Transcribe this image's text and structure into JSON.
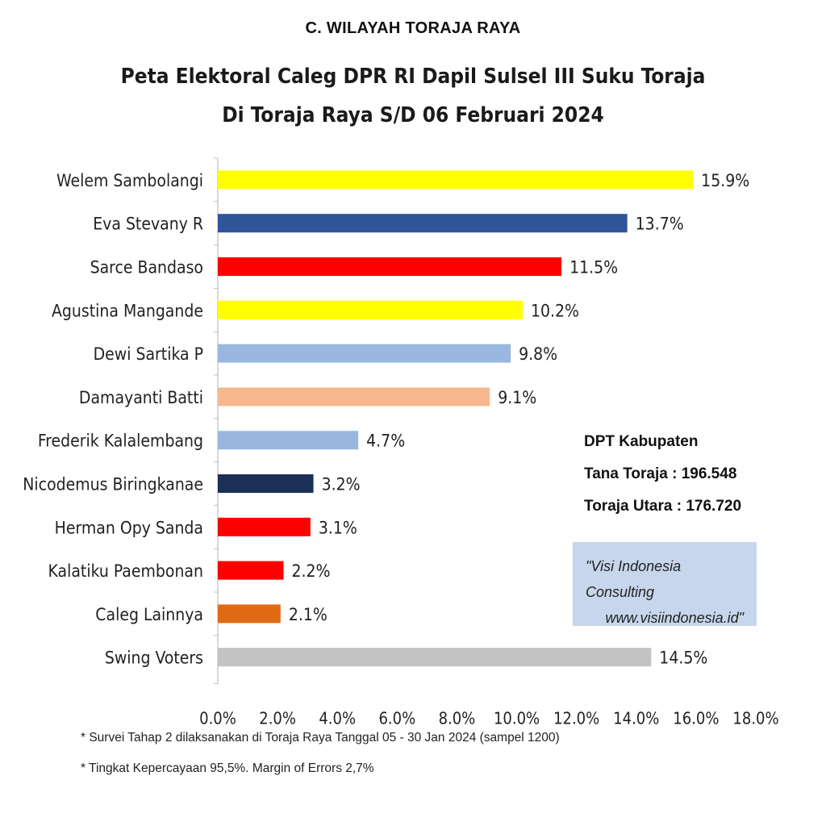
{
  "section_title": "C. WILAYAH TORAJA RAYA",
  "chart_data": {
    "type": "bar",
    "orientation": "horizontal",
    "title": "Peta Elektoral Caleg DPR RI Dapil Sulsel III Suku Toraja",
    "subtitle": "Di Toraja Raya S/D 06 Februari 2024",
    "categories": [
      "Welem Sambolangi",
      "Eva Stevany R",
      "Sarce Bandaso",
      "Agustina Mangande",
      "Dewi Sartika P",
      "Damayanti Batti",
      "Frederik Kalalembang",
      "Nicodemus Biringkanae",
      "Herman Opy Sanda",
      "Kalatiku Paembonan",
      "Caleg Lainnya",
      "Swing Voters"
    ],
    "values": [
      15.9,
      13.7,
      11.5,
      10.2,
      9.8,
      9.1,
      4.7,
      3.2,
      3.1,
      2.2,
      2.1,
      14.5
    ],
    "value_labels": [
      "15.9%",
      "13.7%",
      "11.5%",
      "10.2%",
      "9.8%",
      "9.1%",
      "4.7%",
      "3.2%",
      "3.1%",
      "2.2%",
      "2.1%",
      "14.5%"
    ],
    "colors": [
      "#ffff00",
      "#2e5597",
      "#ff0000",
      "#ffff00",
      "#9ab8df",
      "#f7b88f",
      "#9ab8df",
      "#1c3055",
      "#ff0000",
      "#ff0000",
      "#e06a14",
      "#c3c3c3"
    ],
    "xlim": [
      0,
      18
    ],
    "x_ticks": [
      0,
      2,
      4,
      6,
      8,
      10,
      12,
      14,
      16,
      18
    ],
    "x_tick_labels": [
      "0.0%",
      "2.0%",
      "4.0%",
      "6.0%",
      "8.0%",
      "10.0%",
      "12.0%",
      "14.0%",
      "16.0%",
      "18.0%"
    ],
    "xlabel": "",
    "ylabel": "",
    "grid": false,
    "legend": "none"
  },
  "info": {
    "heading": "DPT Kabupaten",
    "line1": "Tana Toraja  : 196.548",
    "line2": "Toraja Utara : 176.720"
  },
  "credit": {
    "line1": "\"Visi Indonesia Consulting",
    "line2": "www.visiindonesia.id\""
  },
  "footnotes": [
    "* Survei Tahap 2 dilaksanakan di Toraja Raya Tanggal 05 - 30 Jan 2024 (sampel 1200)",
    "* Tingkat Kepercayaan 95,5%. Margin of Errors 2,7%"
  ]
}
